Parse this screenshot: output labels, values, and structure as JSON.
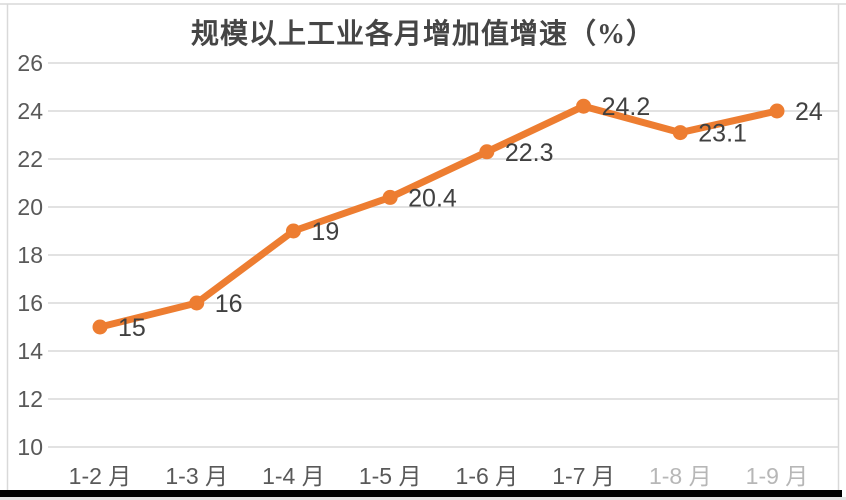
{
  "chart_data": {
    "type": "line",
    "title": "规模以上工业各月增加值增速（%）",
    "categories": [
      "1-2 月",
      "1-3 月",
      "1-4 月",
      "1-5 月",
      "1-6 月",
      "1-7 月",
      "1-8 月",
      "1-9 月"
    ],
    "values": [
      15,
      16,
      19,
      20.4,
      22.3,
      24.2,
      23.1,
      24
    ],
    "data_labels": [
      "15",
      "16",
      "19",
      "20.4",
      "22.3",
      "24.2",
      "23.1",
      "24"
    ],
    "yticks": [
      26,
      24,
      22,
      20,
      18,
      16,
      14,
      12,
      10
    ],
    "ylim": [
      10,
      26
    ],
    "grid": true,
    "legend": false,
    "xlabel": "",
    "ylabel": "",
    "faded_category_indices": [
      6,
      7
    ],
    "colors": {
      "line": "#ED7D31",
      "marker": "#ED7D31",
      "grid": "#D9D9D9",
      "border": "#D9D9D9",
      "axis_text": "#595959",
      "faded_axis_text": "#ABABAB",
      "data_label_text": "#404040",
      "title_text": "#454545",
      "bottom_bar": "#000000"
    }
  }
}
